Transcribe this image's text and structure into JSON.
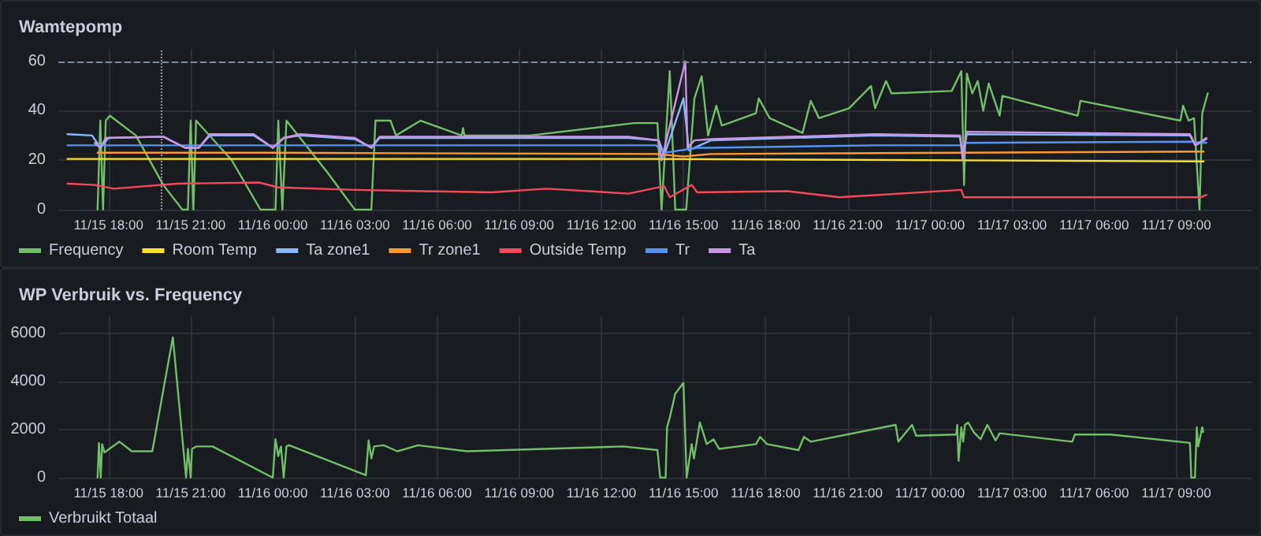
{
  "chart_data": [
    {
      "type": "line",
      "title": "Wamtepomp",
      "xlim": [
        "--11-15T16:10",
        "--11-17T11:45"
      ],
      "xticks": [
        {
          "value": "--11-15T18:00",
          "label": "11/15 18:00"
        },
        {
          "value": "--11-15T21:00",
          "label": "11/15 21:00"
        },
        {
          "value": "--11-16T00:00",
          "label": "11/16 00:00"
        },
        {
          "value": "--11-16T03:00",
          "label": "11/16 03:00"
        },
        {
          "value": "--11-16T06:00",
          "label": "11/16 06:00"
        },
        {
          "value": "--11-16T09:00",
          "label": "11/16 09:00"
        },
        {
          "value": "--11-16T12:00",
          "label": "11/16 12:00"
        },
        {
          "value": "--11-16T15:00",
          "label": "11/16 15:00"
        },
        {
          "value": "--11-16T18:00",
          "label": "11/16 18:00"
        },
        {
          "value": "--11-16T21:00",
          "label": "11/16 21:00"
        },
        {
          "value": "--11-17T00:00",
          "label": "11/17 00:00"
        },
        {
          "value": "--11-17T03:00",
          "label": "11/17 03:00"
        },
        {
          "value": "--11-17T06:00",
          "label": "11/17 06:00"
        },
        {
          "value": "--11-17T09:00",
          "label": "11/17 09:00"
        }
      ],
      "ylim": [
        0,
        65
      ],
      "yticks": [
        0,
        20,
        40,
        60
      ],
      "grid": true,
      "legend": "bottom left",
      "marker": "none",
      "line_style": "solid",
      "ref_lines": [
        {
          "axis": "y",
          "value": 60,
          "color": "#7b8ea6",
          "line_style": "dashed"
        },
        {
          "axis": "x",
          "value": "--11-15T19:56",
          "color": "#9a9a9a",
          "line_style": "dotted"
        }
      ],
      "series": [
        {
          "name": "Frequency",
          "color": "#73bf69",
          "x": [
            "--11-15T17:36",
            "--11-15T17:42",
            "--11-15T17:48",
            "--11-15T17:54",
            "--11-15T18:03",
            "--11-15T19:00",
            "--11-15T20:00",
            "--11-15T20:42",
            "--11-15T20:54",
            "--11-15T21:00",
            "--11-15T21:06",
            "--11-15T21:12",
            "--11-15T22:30",
            "--11-15T23:33",
            "--11-16T00:06",
            "--11-16T00:12",
            "--11-16T00:21",
            "--11-16T00:30",
            "--11-16T02:00",
            "--11-16T03:00",
            "--11-16T03:36",
            "--11-16T03:45",
            "--11-16T04:18",
            "--11-16T04:30",
            "--11-16T05:24",
            "--11-16T06:54",
            "--11-16T06:57",
            "--11-16T07:00",
            "--11-16T09:24",
            "--11-16T13:12",
            "--11-16T14:03",
            "--11-16T14:12",
            "--11-16T14:30",
            "--11-16T14:42",
            "--11-16T15:06",
            "--11-16T15:24",
            "--11-16T15:40",
            "--11-16T15:54",
            "--11-16T16:12",
            "--11-16T16:24",
            "--11-16T17:39",
            "--11-16T17:45",
            "--11-16T18:09",
            "--11-16T19:21",
            "--11-16T19:39",
            "--11-16T19:57",
            "--11-16T21:03",
            "--11-16T21:51",
            "--11-16T22:00",
            "--11-16T22:24",
            "--11-16T22:36",
            "--11-17T00:48",
            "--11-17T01:09",
            "--11-17T01:15",
            "--11-17T01:21",
            "--11-17T01:33",
            "--11-17T01:45",
            "--11-17T01:57",
            "--11-17T02:09",
            "--11-17T02:33",
            "--11-17T02:39",
            "--11-17T05:24",
            "--11-17T05:30",
            "--11-17T09:09",
            "--11-17T09:15",
            "--11-17T09:27",
            "--11-17T09:39",
            "--11-17T09:51",
            "--11-17T09:57",
            "--11-17T10:09"
          ],
          "values": [
            0,
            36,
            0,
            36,
            38,
            30,
            10,
            0,
            0,
            36,
            0,
            36,
            20,
            0,
            0,
            36,
            0,
            36,
            15,
            0,
            0,
            36,
            36,
            30,
            36,
            30,
            33,
            30,
            30,
            35,
            35,
            0,
            56,
            0,
            0,
            45,
            54,
            30,
            42,
            34,
            39,
            45,
            37,
            31,
            44,
            37,
            41,
            50,
            41,
            52,
            47,
            48,
            56,
            10,
            55,
            47,
            52,
            40,
            51,
            38,
            46,
            38,
            44,
            36,
            42,
            36,
            37,
            0,
            39,
            47
          ]
        },
        {
          "name": "Room Temp",
          "color": "#fade2a",
          "x": [
            "--11-15T16:30",
            "--11-16T14:00",
            "--11-17T10:00"
          ],
          "values": [
            20.5,
            20.5,
            19.5
          ]
        },
        {
          "name": "Ta zone1",
          "color": "#8ab8ff",
          "x": [
            "--11-15T16:30",
            "--11-15T17:24",
            "--11-15T17:42",
            "--11-15T18:00",
            "--11-15T20:00",
            "--11-15T20:48",
            "--11-15T21:18",
            "--11-15T21:42",
            "--11-15T23:18",
            "--11-16T00:00",
            "--11-16T00:24",
            "--11-16T01:00",
            "--11-16T03:00",
            "--11-16T03:36",
            "--11-16T03:54",
            "--11-16T13:00",
            "--11-16T14:06",
            "--11-16T14:18",
            "--11-16T15:00",
            "--11-16T15:12",
            "--11-16T16:00",
            "--11-16T22:00",
            "--11-17T01:06",
            "--11-17T01:12",
            "--11-17T01:21",
            "--11-17T09:30",
            "--11-17T09:42",
            "--11-17T10:06"
          ],
          "values": [
            30.5,
            30,
            25,
            29,
            29.5,
            25,
            25,
            30,
            30,
            25,
            29,
            30,
            28.5,
            25,
            29,
            29,
            28,
            22,
            45,
            24,
            28,
            30,
            29.5,
            22,
            30.5,
            30,
            26,
            28.5
          ]
        },
        {
          "name": "Tr zone1",
          "color": "#ff9830",
          "x": [
            "--11-15T17:36",
            "--11-16T00:00",
            "--11-16T14:00",
            "--11-16T15:00",
            "--11-16T16:00",
            "--11-17T10:00"
          ],
          "values": [
            23,
            23,
            22.5,
            21.5,
            22.5,
            23.5
          ]
        },
        {
          "name": "Outside Temp",
          "color": "#f2495c",
          "x": [
            "--11-15T16:30",
            "--11-15T17:30",
            "--11-15T18:12",
            "--11-15T20:30",
            "--11-15T23:30",
            "--11-16T00:12",
            "--11-16T03:00",
            "--11-16T08:00",
            "--11-16T10:00",
            "--11-16T13:00",
            "--11-16T14:18",
            "--11-16T14:30",
            "--11-16T15:18",
            "--11-16T15:30",
            "--11-16T18:48",
            "--11-16T20:42",
            "--11-17T01:09",
            "--11-17T01:15",
            "--11-17T09:54",
            "--11-17T10:06"
          ],
          "values": [
            10.5,
            10,
            8.5,
            10.5,
            11,
            9,
            8,
            7,
            8.5,
            6.5,
            9.5,
            5,
            10,
            7,
            7.5,
            5,
            8,
            5,
            5,
            6
          ]
        },
        {
          "name": "Tr",
          "color": "#5794f2",
          "x": [
            "--11-15T16:30",
            "--11-16T14:00",
            "--11-16T14:18",
            "--11-16T15:30",
            "--11-16T16:00",
            "--11-16T22:00",
            "--11-17T01:06",
            "--11-17T01:18",
            "--11-17T09:30",
            "--11-17T10:06"
          ],
          "values": [
            26,
            26,
            23,
            25,
            25,
            26,
            26,
            27,
            27.5,
            27
          ]
        },
        {
          "name": "Ta",
          "color": "#ca95e5",
          "x": [
            "--11-15T17:30",
            "--11-15T17:42",
            "--11-15T17:54",
            "--11-15T20:00",
            "--11-15T20:48",
            "--11-15T21:18",
            "--11-15T21:42",
            "--11-15T23:18",
            "--11-16T00:00",
            "--11-16T00:24",
            "--11-16T01:00",
            "--11-16T03:00",
            "--11-16T03:36",
            "--11-16T03:54",
            "--11-16T13:00",
            "--11-16T14:06",
            "--11-16T14:12",
            "--11-16T15:04",
            "--11-16T15:09",
            "--11-16T15:24",
            "--11-16T16:00",
            "--11-16T22:00",
            "--11-17T01:06",
            "--11-17T01:12",
            "--11-17T01:21",
            "--11-17T09:30",
            "--11-17T09:42",
            "--11-17T10:06"
          ],
          "values": [
            27,
            25,
            29,
            29.5,
            25,
            25,
            30.5,
            30.5,
            25,
            29,
            30.5,
            29,
            25,
            29.5,
            29.5,
            28,
            20,
            60,
            25,
            28,
            28.5,
            30.5,
            30,
            20,
            31.5,
            30.5,
            26,
            29
          ]
        }
      ]
    },
    {
      "type": "line",
      "title": "WP Verbruik vs. Frequency",
      "xlim": [
        "--11-15T16:10",
        "--11-17T11:45"
      ],
      "xticks": [
        {
          "value": "--11-15T18:00",
          "label": "11/15 18:00"
        },
        {
          "value": "--11-15T21:00",
          "label": "11/15 21:00"
        },
        {
          "value": "--11-16T00:00",
          "label": "11/16 00:00"
        },
        {
          "value": "--11-16T03:00",
          "label": "11/16 03:00"
        },
        {
          "value": "--11-16T06:00",
          "label": "11/16 06:00"
        },
        {
          "value": "--11-16T09:00",
          "label": "11/16 09:00"
        },
        {
          "value": "--11-16T12:00",
          "label": "11/16 12:00"
        },
        {
          "value": "--11-16T15:00",
          "label": "11/16 15:00"
        },
        {
          "value": "--11-16T18:00",
          "label": "11/16 18:00"
        },
        {
          "value": "--11-16T21:00",
          "label": "11/16 21:00"
        },
        {
          "value": "--11-17T00:00",
          "label": "11/17 00:00"
        },
        {
          "value": "--11-17T03:00",
          "label": "11/17 03:00"
        },
        {
          "value": "--11-17T06:00",
          "label": "11/17 06:00"
        },
        {
          "value": "--11-17T09:00",
          "label": "11/17 09:00"
        }
      ],
      "ylim": [
        0,
        6700
      ],
      "yticks": [
        0,
        2000,
        4000,
        6000
      ],
      "grid": true,
      "legend": "bottom left",
      "marker": "none",
      "line_style": "solid",
      "series": [
        {
          "name": "Verbruikt Totaal",
          "color": "#73bf69",
          "x": [
            "--11-15T17:36",
            "--11-15T17:39",
            "--11-15T17:43",
            "--11-15T17:46",
            "--11-15T17:51",
            "--11-15T18:24",
            "--11-15T18:51",
            "--11-15T19:36",
            "--11-15T20:21",
            "--11-15T20:50",
            "--11-15T20:54",
            "--11-15T21:00",
            "--11-15T21:03",
            "--11-15T21:12",
            "--11-15T21:48",
            "--11-16T00:00",
            "--11-16T00:06",
            "--11-16T00:12",
            "--11-16T00:18",
            "--11-16T00:24",
            "--11-16T00:30",
            "--11-16T00:36",
            "--11-16T03:24",
            "--11-16T03:30",
            "--11-16T03:36",
            "--11-16T03:42",
            "--11-16T04:03",
            "--11-16T04:33",
            "--11-16T05:18",
            "--11-16T07:06",
            "--11-16T12:48",
            "--11-16T14:03",
            "--11-16T14:09",
            "--11-16T14:21",
            "--11-16T14:24",
            "--11-16T14:30",
            "--11-16T14:42",
            "--11-16T15:00",
            "--11-16T15:07",
            "--11-16T15:18",
            "--11-16T15:23",
            "--11-16T15:36",
            "--11-16T15:51",
            "--11-16T16:06",
            "--11-16T16:18",
            "--11-16T17:39",
            "--11-16T17:48",
            "--11-16T18:03",
            "--11-16T19:12",
            "--11-16T19:24",
            "--11-16T19:39",
            "--11-16T22:45",
            "--11-16T22:51",
            "--11-16T23:21",
            "--11-16T23:30",
            "--11-17T00:58",
            "--11-17T01:00",
            "--11-17T01:03",
            "--11-17T01:09",
            "--11-17T01:13",
            "--11-17T01:17",
            "--11-17T01:24",
            "--11-17T01:36",
            "--11-17T01:51",
            "--11-17T02:06",
            "--11-17T02:24",
            "--11-17T02:33",
            "--11-17T05:12",
            "--11-17T05:18",
            "--11-17T06:36",
            "--11-17T09:30",
            "--11-17T09:33",
            "--11-17T09:41",
            "--11-17T09:45",
            "--11-17T09:48",
            "--11-17T09:57",
            "--11-17T09:59"
          ],
          "values": [
            0,
            1450,
            0,
            1400,
            1050,
            1500,
            1100,
            1100,
            5850,
            0,
            1200,
            0,
            1200,
            1300,
            1300,
            0,
            1600,
            900,
            1300,
            0,
            1300,
            1350,
            100,
            1550,
            800,
            1300,
            1350,
            1100,
            1350,
            1100,
            1300,
            1150,
            0,
            0,
            2100,
            2500,
            3500,
            3950,
            0,
            1400,
            800,
            2300,
            1400,
            1600,
            1200,
            1400,
            1700,
            1400,
            1150,
            1700,
            1500,
            2200,
            1500,
            2200,
            1750,
            1800,
            2200,
            700,
            2100,
            1500,
            2200,
            2300,
            1900,
            1600,
            2200,
            1550,
            1850,
            1500,
            1800,
            1800,
            1450,
            0,
            0,
            2100,
            1300,
            2100,
            1900
          ]
        }
      ]
    }
  ]
}
